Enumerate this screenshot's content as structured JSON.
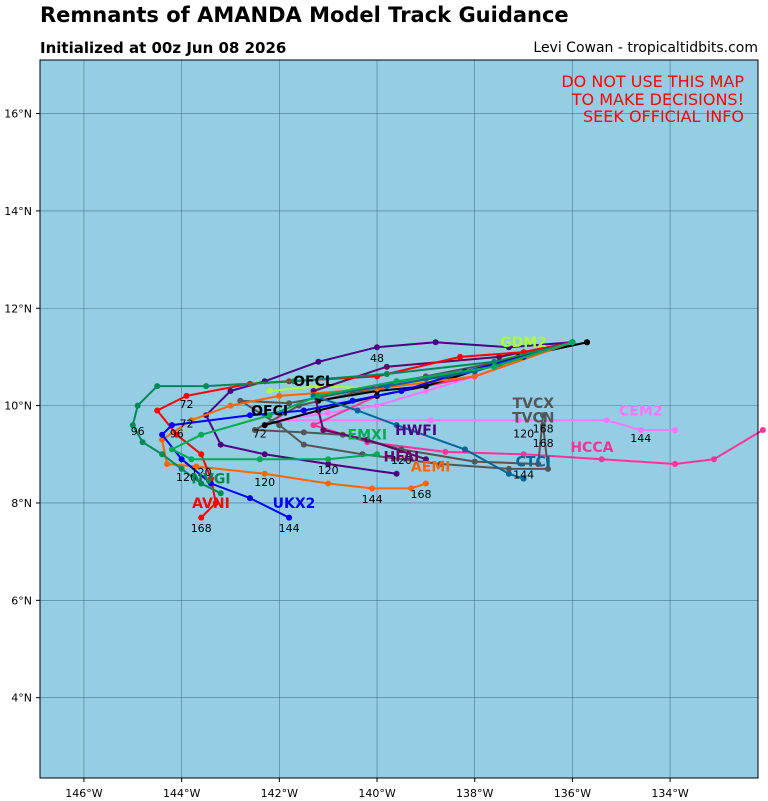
{
  "header": {
    "title": "Remnants of AMANDA Model Track Guidance",
    "subtitle": "Initialized at 00z Jun 08 2026",
    "credit": "Levi Cowan - tropicaltidbits.com"
  },
  "warning": [
    "DO NOT USE THIS MAP",
    "TO MAKE DECISIONS!",
    "SEEK OFFICIAL INFO"
  ],
  "map": {
    "ocean_color": "#94cde4",
    "grid_color": "#2c5a6a",
    "lon_range": [
      -146.9,
      -132.2
    ],
    "lat_range": [
      2.35,
      17.1
    ],
    "lon_ticks": [
      -146,
      -144,
      -142,
      -140,
      -138,
      -136,
      -134
    ],
    "lat_ticks": [
      4,
      6,
      8,
      10,
      12,
      14,
      16
    ],
    "lon_tick_labels": [
      "146°W",
      "144°W",
      "142°W",
      "140°W",
      "138°W",
      "136°W",
      "134°W"
    ],
    "lat_tick_labels": [
      "4°N",
      "6°N",
      "8°N",
      "10°N",
      "12°N",
      "14°N",
      "16°N"
    ]
  },
  "tracks": [
    {
      "name": "GDM2",
      "color": "#adff2f",
      "label_pos": [
        -137.0,
        11.2
      ],
      "points": [
        [
          -136.0,
          11.3
        ],
        [
          -137.0,
          11.1
        ],
        [
          -138.0,
          10.7
        ],
        [
          -139.0,
          10.5
        ],
        [
          -140.0,
          10.35
        ],
        [
          -141.2,
          10.4
        ],
        [
          -142.2,
          10.3
        ]
      ],
      "hours": []
    },
    {
      "name": "CEM2",
      "color": "#ff77ff",
      "label_pos": [
        -134.6,
        9.8
      ],
      "points": [
        [
          -136.0,
          11.3
        ],
        [
          -138.0,
          10.6
        ],
        [
          -139.0,
          10.3
        ],
        [
          -140.0,
          10.0
        ],
        [
          -141.0,
          9.85
        ],
        [
          -142.0,
          9.7
        ],
        [
          -138.9,
          9.7
        ],
        [
          -137.1,
          9.7
        ],
        [
          -135.3,
          9.7
        ],
        [
          -134.6,
          9.5
        ],
        [
          -133.9,
          9.5
        ]
      ],
      "hours": [
        {
          "h": "144",
          "lon": -134.6,
          "lat": 9.25
        }
      ]
    },
    {
      "name": "HCCA",
      "color": "#ff3399",
      "label_pos": [
        -135.6,
        9.05
      ],
      "points": [
        [
          -136.0,
          11.3
        ],
        [
          -138.0,
          10.6
        ],
        [
          -140.0,
          10.2
        ],
        [
          -141.3,
          9.6
        ],
        [
          -140.2,
          9.25
        ],
        [
          -138.6,
          9.05
        ],
        [
          -137.0,
          9.0
        ],
        [
          -135.4,
          8.9
        ],
        [
          -133.9,
          8.8
        ],
        [
          -133.1,
          8.9
        ],
        [
          -132.1,
          9.5
        ]
      ],
      "hours": []
    },
    {
      "name": "TVCX",
      "color": "#555555",
      "label_pos": [
        -136.8,
        9.95
      ],
      "points": [
        [
          -136.0,
          11.3
        ],
        [
          -137.5,
          10.9
        ],
        [
          -139.0,
          10.6
        ],
        [
          -140.5,
          10.3
        ],
        [
          -141.8,
          10.05
        ],
        [
          -142.8,
          10.1
        ],
        [
          -142.0,
          9.6
        ],
        [
          -141.5,
          9.2
        ],
        [
          -140.3,
          9.0
        ],
        [
          -138.7,
          8.8
        ],
        [
          -137.3,
          8.7
        ],
        [
          -136.5,
          8.7
        ],
        [
          -136.6,
          9.6
        ]
      ],
      "hours": [
        {
          "h": "168",
          "lon": -136.6,
          "lat": 9.45
        }
      ]
    },
    {
      "name": "TVCN",
      "color": "#555555",
      "label_pos": [
        -136.8,
        9.65
      ],
      "points": [
        [
          -136.0,
          11.3
        ],
        [
          -137.5,
          10.85
        ],
        [
          -139.0,
          10.55
        ],
        [
          -140.5,
          10.25
        ],
        [
          -141.6,
          10.0
        ],
        [
          -142.5,
          9.5
        ],
        [
          -141.5,
          9.45
        ],
        [
          -140.7,
          9.4
        ],
        [
          -139.5,
          9.1
        ],
        [
          -138.0,
          8.85
        ],
        [
          -136.7,
          8.8
        ],
        [
          -136.6,
          9.8
        ]
      ],
      "hours": [
        {
          "h": "168",
          "lon": -136.6,
          "lat": 9.15
        },
        {
          "h": "120",
          "lon": -137.0,
          "lat": 9.35
        }
      ]
    },
    {
      "name": "OFCL",
      "color": "#000000",
      "label_pos": [
        -141.3,
        10.4
      ],
      "points": [
        [
          -135.7,
          11.3
        ],
        [
          -137.1,
          11.0
        ],
        [
          -139.0,
          10.4
        ],
        [
          -140.0,
          10.3
        ],
        [
          -141.2,
          10.1
        ]
      ],
      "hours": []
    },
    {
      "name": "OFCI",
      "color": "#000000",
      "label_pos": [
        -142.2,
        9.8
      ],
      "points": [
        [
          -135.7,
          11.3
        ],
        [
          -137.1,
          11.0
        ],
        [
          -139.0,
          10.4
        ],
        [
          -140.0,
          10.2
        ],
        [
          -141.2,
          9.9
        ],
        [
          -142.3,
          9.6
        ]
      ],
      "hours": [
        {
          "h": "72",
          "lon": -142.4,
          "lat": 9.35
        }
      ]
    },
    {
      "name": "HWFI",
      "color": "#4b0082",
      "label_pos": [
        -139.2,
        9.4
      ],
      "points": [
        [
          -136.0,
          11.3
        ],
        [
          -137.3,
          11.2
        ],
        [
          -138.8,
          11.3
        ],
        [
          -140.0,
          11.2
        ],
        [
          -141.2,
          10.9
        ],
        [
          -142.3,
          10.5
        ],
        [
          -143.0,
          10.3
        ],
        [
          -143.5,
          9.8
        ],
        [
          -143.2,
          9.2
        ],
        [
          -142.3,
          9.0
        ],
        [
          -141.0,
          8.8
        ],
        [
          -139.6,
          8.6
        ]
      ],
      "hours": [
        {
          "h": "48",
          "lon": -140.0,
          "lat": 10.9
        }
      ]
    },
    {
      "name": "HFAI",
      "color": "#660066",
      "label_pos": [
        -139.5,
        8.85
      ],
      "points": [
        [
          -136.0,
          11.3
        ],
        [
          -137.5,
          11.0
        ],
        [
          -139.8,
          10.8
        ],
        [
          -141.3,
          10.3
        ],
        [
          -141.1,
          9.5
        ],
        [
          -140.2,
          9.3
        ],
        [
          -139.0,
          8.9
        ]
      ],
      "hours": [
        {
          "h": "120",
          "lon": -139.5,
          "lat": 8.8
        }
      ]
    },
    {
      "name": "AEMI",
      "color": "#ff6600",
      "label_pos": [
        -138.9,
        8.65
      ],
      "points": [
        [
          -136.0,
          11.3
        ],
        [
          -138.0,
          10.6
        ],
        [
          -140.0,
          10.35
        ],
        [
          -142.0,
          10.2
        ],
        [
          -143.0,
          10.0
        ],
        [
          -143.8,
          9.7
        ],
        [
          -144.4,
          9.3
        ],
        [
          -144.3,
          8.8
        ],
        [
          -143.7,
          8.75
        ],
        [
          -142.3,
          8.6
        ],
        [
          -141.0,
          8.4
        ],
        [
          -140.1,
          8.3
        ],
        [
          -139.3,
          8.3
        ],
        [
          -139.0,
          8.4
        ]
      ],
      "hours": [
        {
          "h": "120",
          "lon": -142.3,
          "lat": 8.35
        },
        {
          "h": "144",
          "lon": -140.1,
          "lat": 8.0
        },
        {
          "h": "168",
          "lon": -139.1,
          "lat": 8.1
        }
      ]
    },
    {
      "name": "AVNI",
      "color": "#ff0000",
      "label_pos": [
        -143.4,
        7.9
      ],
      "points": [
        [
          -136.0,
          11.3
        ],
        [
          -137.0,
          11.1
        ],
        [
          -138.3,
          11.0
        ],
        [
          -140.0,
          10.6
        ],
        [
          -141.8,
          10.5
        ],
        [
          -142.6,
          10.45
        ],
        [
          -143.9,
          10.2
        ],
        [
          -144.5,
          9.9
        ],
        [
          -144.1,
          9.4
        ],
        [
          -143.6,
          9.0
        ],
        [
          -143.4,
          8.5
        ],
        [
          -143.3,
          8.0
        ],
        [
          -143.6,
          7.7
        ]
      ],
      "hours": [
        {
          "h": "72",
          "lon": -143.9,
          "lat": 9.95
        },
        {
          "h": "96",
          "lon": -144.1,
          "lat": 9.35
        },
        {
          "h": "120",
          "lon": -143.6,
          "lat": 8.55
        },
        {
          "h": "168",
          "lon": -143.6,
          "lat": 7.4
        }
      ]
    },
    {
      "name": "UKX2",
      "color": "#0000ff",
      "label_pos": [
        -141.7,
        7.9
      ],
      "points": [
        [
          -136.0,
          11.3
        ],
        [
          -137.0,
          11.0
        ],
        [
          -138.2,
          10.7
        ],
        [
          -139.5,
          10.3
        ],
        [
          -140.5,
          10.1
        ],
        [
          -141.5,
          9.9
        ],
        [
          -142.6,
          9.8
        ],
        [
          -144.2,
          9.6
        ],
        [
          -144.4,
          9.4
        ],
        [
          -144.0,
          8.9
        ],
        [
          -143.4,
          8.4
        ],
        [
          -142.6,
          8.1
        ],
        [
          -141.8,
          7.7
        ]
      ],
      "hours": [
        {
          "h": "144",
          "lon": -141.8,
          "lat": 7.4
        },
        {
          "h": "72",
          "lon": -143.9,
          "lat": 9.55
        }
      ]
    },
    {
      "name": "CTCI",
      "color": "#006699",
      "label_pos": [
        -136.8,
        8.75
      ],
      "points": [
        [
          -136.0,
          11.3
        ],
        [
          -138.0,
          10.7
        ],
        [
          -139.8,
          10.4
        ],
        [
          -141.3,
          10.2
        ],
        [
          -140.4,
          9.9
        ],
        [
          -139.6,
          9.6
        ],
        [
          -138.2,
          9.1
        ],
        [
          -137.3,
          8.6
        ],
        [
          -137.0,
          8.5
        ]
      ],
      "hours": [
        {
          "h": "144",
          "lon": -137.0,
          "lat": 8.5
        }
      ]
    },
    {
      "name": "NVGI",
      "color": "#008855",
      "label_pos": [
        -143.4,
        8.4
      ],
      "points": [
        [
          -136.0,
          11.3
        ],
        [
          -137.6,
          10.9
        ],
        [
          -139.8,
          10.65
        ],
        [
          -141.7,
          10.5
        ],
        [
          -143.5,
          10.4
        ],
        [
          -144.5,
          10.4
        ],
        [
          -144.9,
          10.0
        ],
        [
          -145.0,
          9.6
        ],
        [
          -144.8,
          9.25
        ],
        [
          -144.4,
          9.0
        ],
        [
          -144.0,
          8.7
        ],
        [
          -143.6,
          8.4
        ],
        [
          -143.2,
          8.2
        ]
      ],
      "hours": [
        {
          "h": "96",
          "lon": -144.9,
          "lat": 9.4
        },
        {
          "h": "120",
          "lon": -143.9,
          "lat": 8.45
        }
      ]
    },
    {
      "name": "EMXI",
      "color": "#00aa55",
      "label_pos": [
        -140.2,
        9.3
      ],
      "points": [
        [
          -136.0,
          11.3
        ],
        [
          -137.6,
          10.8
        ],
        [
          -139.6,
          10.5
        ],
        [
          -141.2,
          10.2
        ],
        [
          -142.2,
          9.8
        ],
        [
          -143.6,
          9.4
        ],
        [
          -144.2,
          9.1
        ],
        [
          -143.8,
          8.9
        ],
        [
          -142.4,
          8.9
        ],
        [
          -141.0,
          8.9
        ],
        [
          -140.0,
          9.0
        ]
      ],
      "hours": [
        {
          "h": "120",
          "lon": -141.0,
          "lat": 8.6
        }
      ]
    }
  ]
}
